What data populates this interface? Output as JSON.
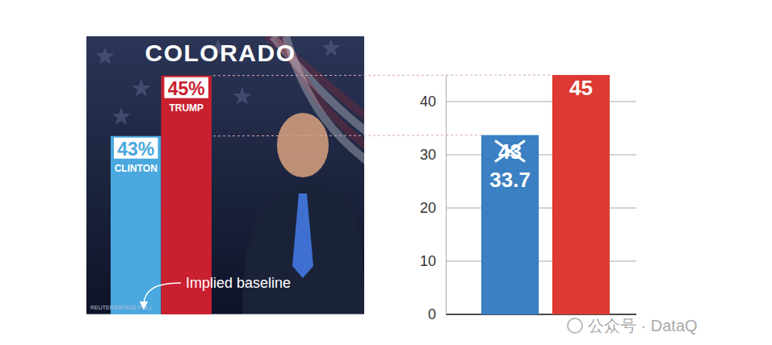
{
  "chart_data": [
    {
      "type": "bar",
      "title": "COLORADO",
      "categories": [
        "CLINTON",
        "TRUMP"
      ],
      "values": [
        43,
        45
      ],
      "value_labels": [
        "43%",
        "45%"
      ],
      "colors": [
        "#4aa8de",
        "#c8202f"
      ],
      "ylim": [
        37.1,
        46.3
      ],
      "tick_labels": false,
      "data_labels": true,
      "annotations": [
        "Implied baseline"
      ],
      "source": "REUTERS/IPSOS POLL"
    },
    {
      "type": "bar",
      "categories": [
        null,
        null
      ],
      "values": [
        33.7,
        45
      ],
      "colors": [
        "#3a80c3",
        "#dc3a32"
      ],
      "ylim": [
        0,
        45
      ],
      "yticks": [
        0,
        10,
        20,
        30,
        40
      ],
      "grid": true,
      "data_labels": true,
      "annotations": [
        "43"
      ],
      "tick_labels": "y"
    }
  ],
  "watermark": "公众号 · DataQ"
}
